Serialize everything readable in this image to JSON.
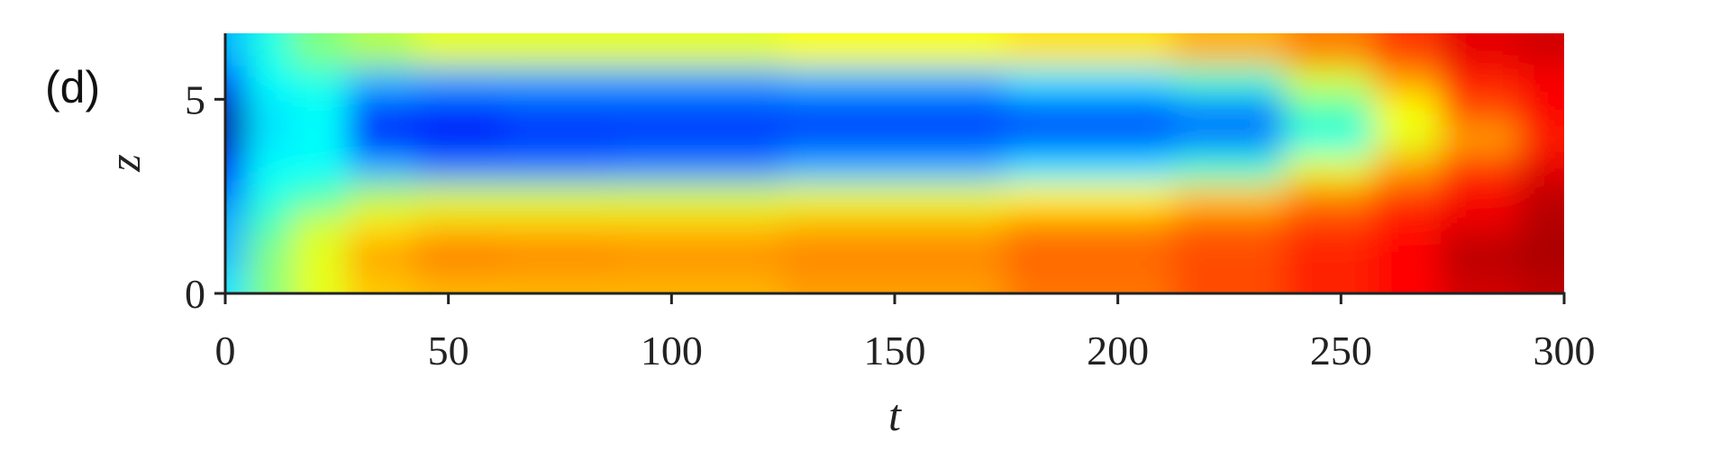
{
  "chart_data": {
    "type": "heatmap",
    "panel_label": "(d)",
    "xlabel": "t",
    "ylabel": "z",
    "colormap": "jet",
    "clim": [
      0,
      1
    ],
    "x": [
      0,
      10,
      20,
      35,
      50,
      75,
      100,
      150,
      200,
      225,
      250,
      265,
      280,
      300
    ],
    "y": [
      0.25,
      1,
      1.75,
      2.5,
      3.25,
      4,
      4.75,
      5.5,
      6.25
    ],
    "z": [
      [
        0.35,
        0.5,
        0.6,
        0.68,
        0.7,
        0.7,
        0.7,
        0.72,
        0.76,
        0.8,
        0.84,
        0.87,
        0.92,
        0.94
      ],
      [
        0.3,
        0.5,
        0.6,
        0.72,
        0.76,
        0.75,
        0.74,
        0.75,
        0.78,
        0.8,
        0.84,
        0.87,
        0.95,
        0.96
      ],
      [
        0.3,
        0.45,
        0.58,
        0.65,
        0.68,
        0.68,
        0.68,
        0.7,
        0.74,
        0.78,
        0.82,
        0.86,
        0.9,
        0.95
      ],
      [
        0.25,
        0.4,
        0.45,
        0.55,
        0.58,
        0.58,
        0.58,
        0.6,
        0.63,
        0.68,
        0.75,
        0.82,
        0.88,
        0.94
      ],
      [
        0.15,
        0.38,
        0.38,
        0.3,
        0.25,
        0.25,
        0.26,
        0.3,
        0.35,
        0.42,
        0.6,
        0.72,
        0.82,
        0.9
      ],
      [
        0.05,
        0.35,
        0.38,
        0.15,
        0.12,
        0.17,
        0.18,
        0.2,
        0.22,
        0.25,
        0.4,
        0.6,
        0.72,
        0.85
      ],
      [
        0.05,
        0.35,
        0.38,
        0.2,
        0.18,
        0.2,
        0.2,
        0.2,
        0.22,
        0.25,
        0.45,
        0.62,
        0.8,
        0.88
      ],
      [
        0.2,
        0.38,
        0.4,
        0.3,
        0.28,
        0.28,
        0.28,
        0.3,
        0.35,
        0.42,
        0.58,
        0.72,
        0.85,
        0.88
      ],
      [
        0.3,
        0.4,
        0.5,
        0.55,
        0.6,
        0.6,
        0.6,
        0.62,
        0.65,
        0.7,
        0.75,
        0.82,
        0.9,
        0.92
      ]
    ],
    "xlim": [
      0,
      300
    ],
    "xticks": [
      0,
      50,
      100,
      150,
      200,
      250,
      300
    ],
    "ylim": [
      0,
      6.7
    ],
    "yticks": [
      0,
      5
    ]
  }
}
